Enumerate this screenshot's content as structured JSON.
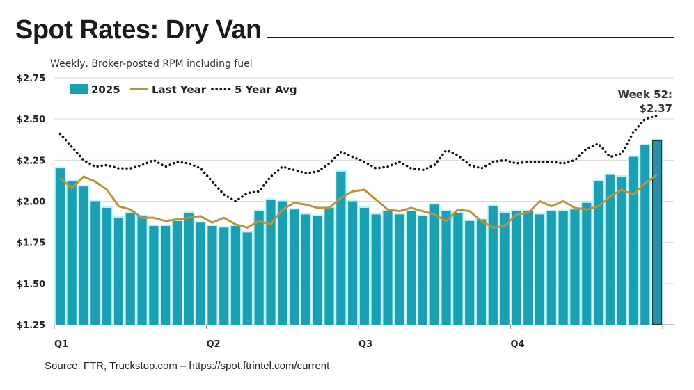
{
  "chart_data": {
    "type": "bar",
    "title": "Spot Rates: Dry Van",
    "subtitle": "Weekly, Broker-posted RPM including fuel",
    "source": "Source: FTR, Truckstop.com – https://spot.ftrintel.com/current",
    "ylim": [
      1.25,
      2.75
    ],
    "yticks": [
      "$1.25",
      "$1.50",
      "$1.75",
      "$2.00",
      "$2.25",
      "$2.50",
      "$2.75"
    ],
    "ytick_values": [
      1.25,
      1.5,
      1.75,
      2.0,
      2.25,
      2.5,
      2.75
    ],
    "xtick_labels": [
      "Q1",
      "Q2",
      "Q3",
      "Q4"
    ],
    "xtick_weeks": [
      1,
      14,
      27,
      40
    ],
    "grid": true,
    "legend_position": "top-left",
    "annotation": {
      "line1": "Week 52:",
      "line2": "$2.37"
    },
    "colors": {
      "bars": "#1a9fb3",
      "bar_glow": "#b8f4f8",
      "last_year": "#c0913a",
      "five_year": "#111111"
    },
    "series": [
      {
        "name": "2025",
        "kind": "bar",
        "values": [
          2.2,
          2.12,
          2.09,
          2.0,
          1.96,
          1.9,
          1.93,
          1.91,
          1.85,
          1.85,
          1.88,
          1.93,
          1.87,
          1.85,
          1.84,
          1.85,
          1.81,
          1.94,
          2.01,
          2.0,
          1.95,
          1.92,
          1.91,
          1.96,
          2.18,
          2.0,
          1.96,
          1.92,
          1.94,
          1.92,
          1.94,
          1.91,
          1.98,
          1.94,
          1.93,
          1.88,
          1.89,
          1.97,
          1.93,
          1.94,
          1.94,
          1.92,
          1.94,
          1.94,
          1.95,
          1.99,
          2.12,
          2.16,
          2.15,
          2.27,
          2.34,
          2.37
        ]
      },
      {
        "name": "Last Year",
        "kind": "line",
        "values": [
          2.14,
          2.08,
          2.15,
          2.12,
          2.07,
          1.97,
          1.95,
          1.9,
          1.9,
          1.88,
          1.89,
          1.9,
          1.91,
          1.87,
          1.9,
          1.86,
          1.84,
          1.88,
          1.86,
          1.95,
          1.99,
          1.98,
          1.96,
          1.96,
          2.02,
          2.06,
          2.07,
          2.01,
          1.95,
          1.94,
          1.96,
          1.94,
          1.92,
          1.88,
          1.95,
          1.94,
          1.88,
          1.84,
          1.85,
          1.92,
          1.93,
          2.0,
          1.97,
          2.0,
          1.96,
          1.95,
          1.97,
          2.03,
          2.07,
          2.04,
          2.11,
          2.16
        ]
      },
      {
        "name": "5 Year Avg",
        "kind": "dotted-line",
        "values": [
          2.41,
          2.33,
          2.25,
          2.21,
          2.22,
          2.2,
          2.2,
          2.22,
          2.25,
          2.21,
          2.24,
          2.23,
          2.2,
          2.12,
          2.04,
          2.0,
          2.05,
          2.06,
          2.15,
          2.21,
          2.19,
          2.17,
          2.18,
          2.23,
          2.3,
          2.27,
          2.24,
          2.2,
          2.21,
          2.24,
          2.2,
          2.19,
          2.22,
          2.31,
          2.28,
          2.22,
          2.2,
          2.24,
          2.25,
          2.23,
          2.24,
          2.24,
          2.24,
          2.23,
          2.25,
          2.32,
          2.35,
          2.27,
          2.29,
          2.42,
          2.5,
          2.52
        ]
      }
    ]
  }
}
